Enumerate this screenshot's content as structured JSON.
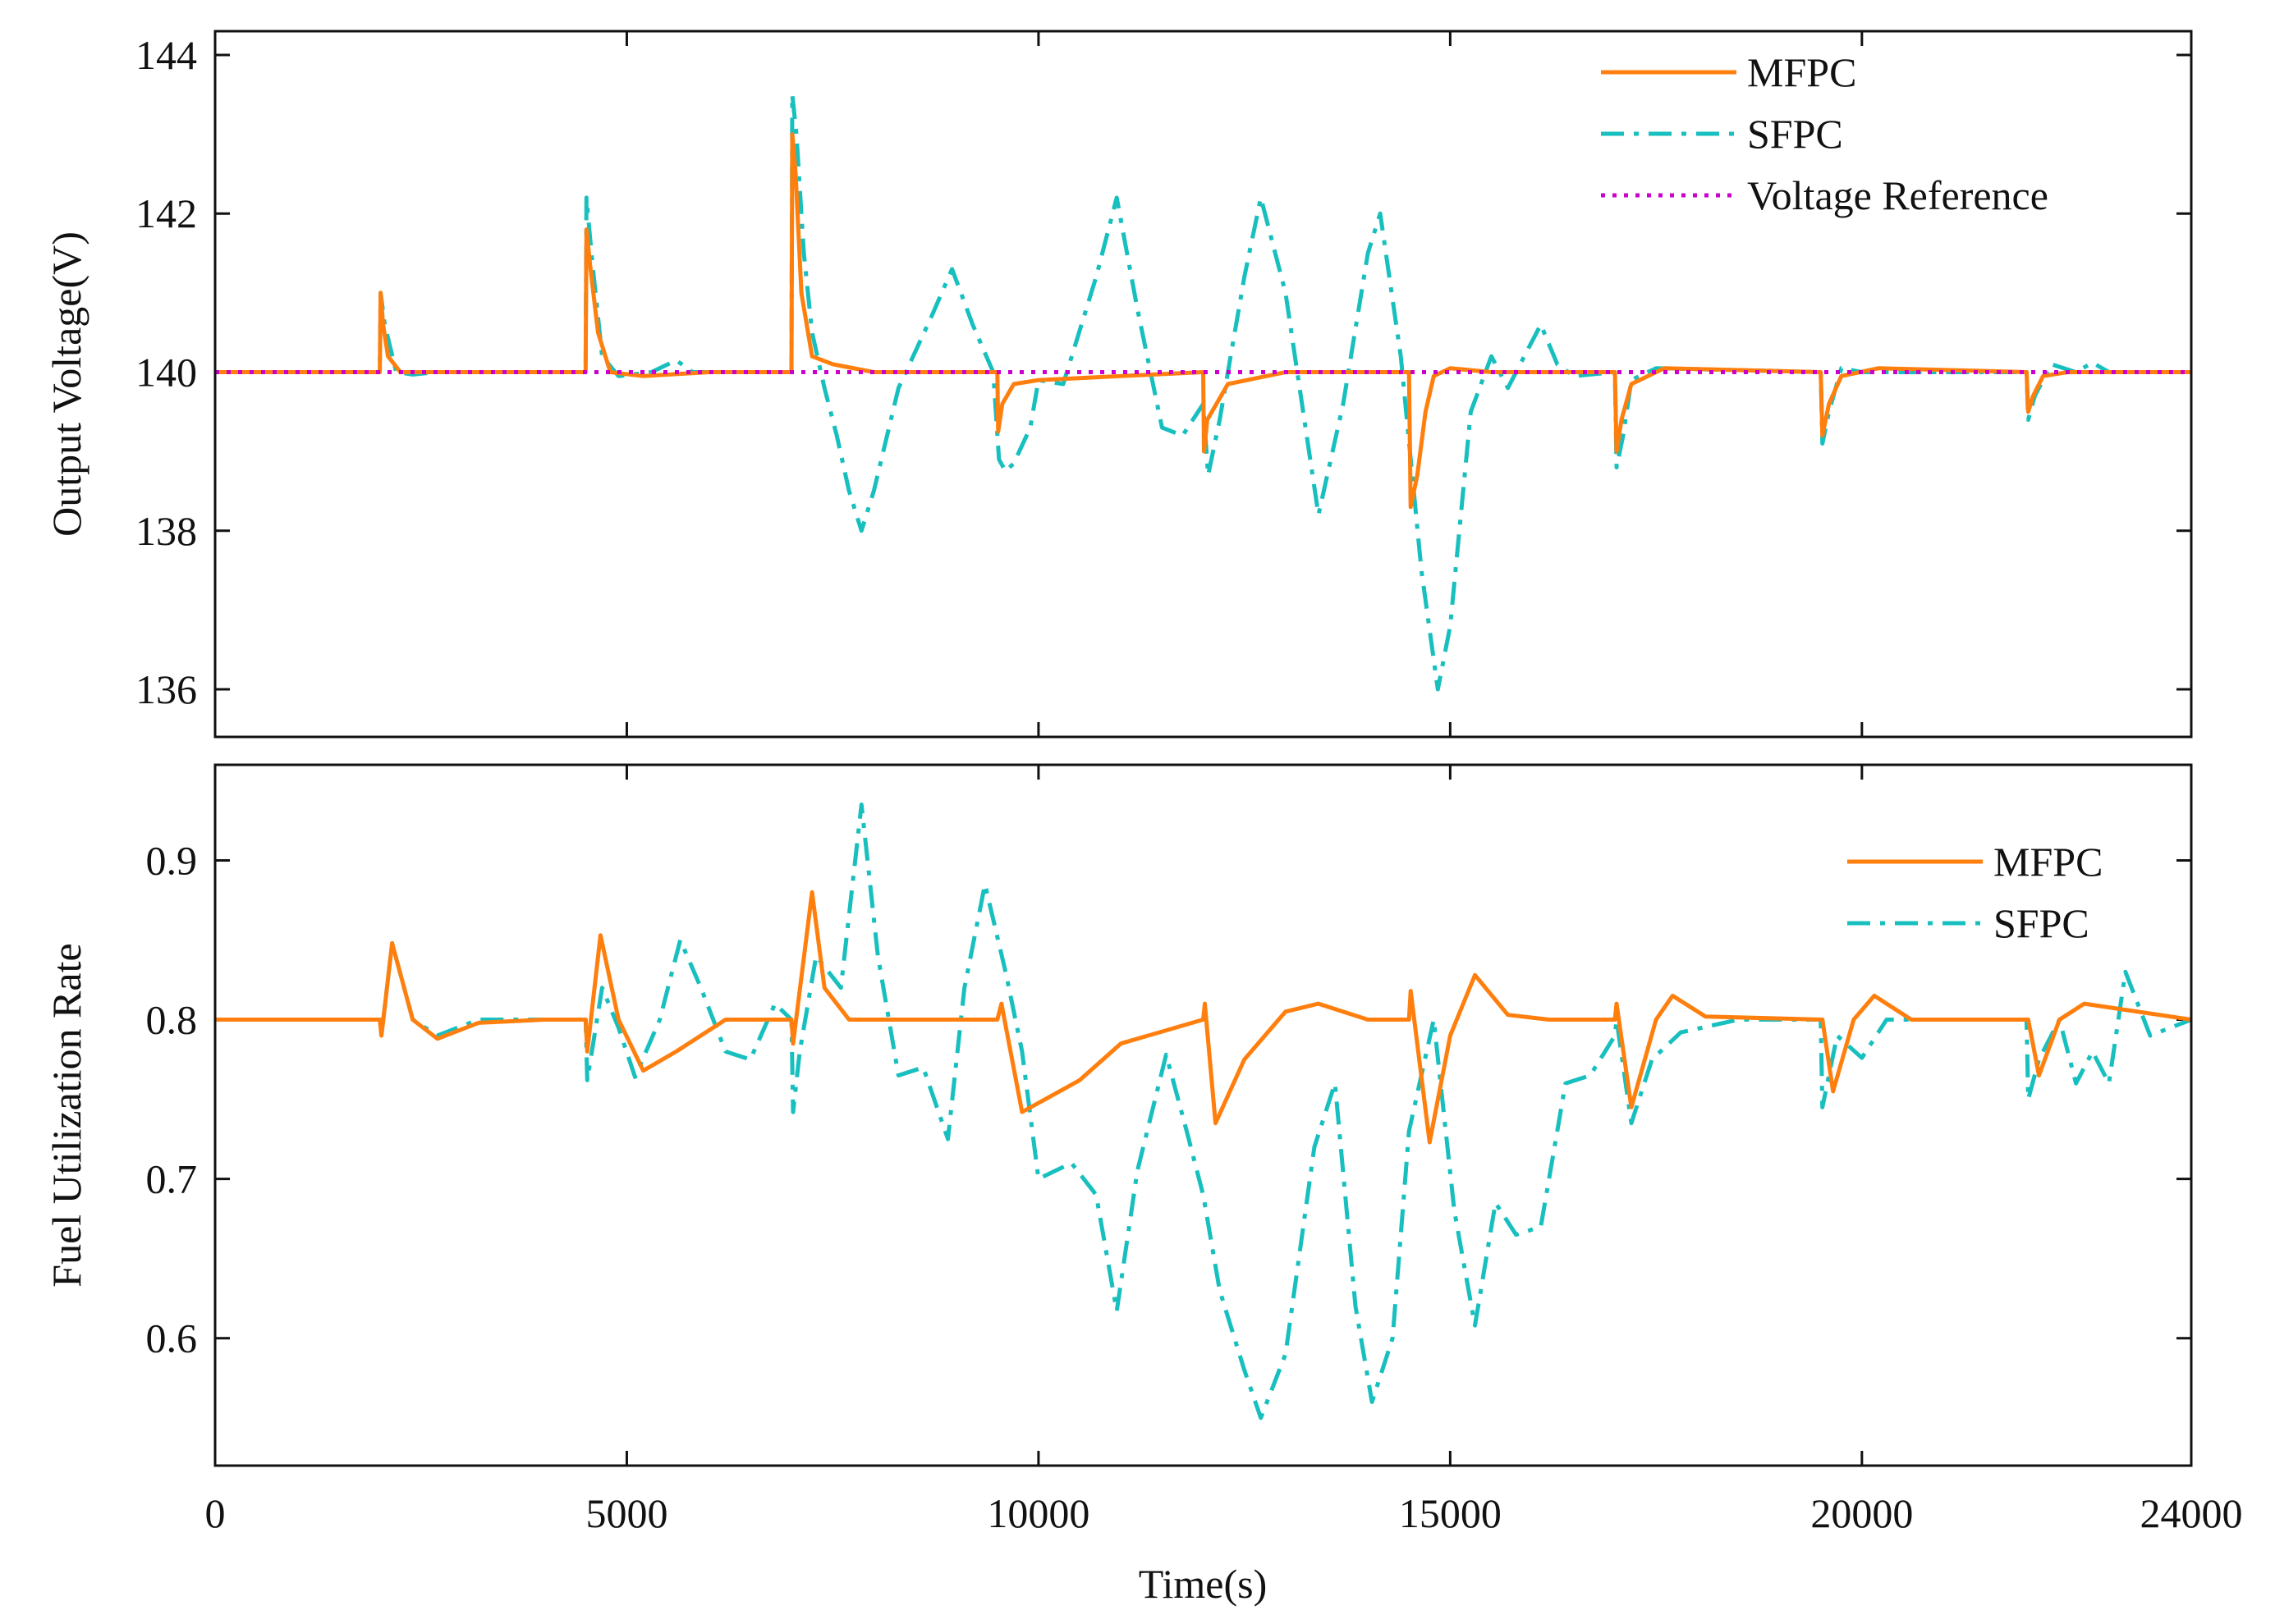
{
  "colors": {
    "mfpc": "#ff7f0e",
    "sfpc": "#17bfbf",
    "reference": "#cc00cc",
    "axes": "#111111",
    "background": "#ffffff"
  },
  "chart_data": [
    {
      "type": "line",
      "title": "",
      "xlabel": "",
      "ylabel": "Output Voltage(V)",
      "xlim": [
        0,
        24000
      ],
      "ylim": [
        135.4,
        144.3
      ],
      "xticks": [
        0,
        5000,
        10000,
        15000,
        20000,
        24000
      ],
      "yticks": [
        136,
        138,
        140,
        142,
        144
      ],
      "ytick_labels": [
        "136",
        "138",
        "140",
        "142",
        "144"
      ],
      "legend": {
        "position": "top-right",
        "entries": [
          "MFPC",
          "SFPC",
          "Voltage Reference"
        ]
      },
      "series": [
        {
          "name": "MFPC",
          "style": "solid",
          "x": [
            0,
            2000,
            2010,
            2040,
            2100,
            2250,
            2500,
            4500,
            4510,
            4560,
            4650,
            4800,
            5200,
            6000,
            7000,
            7010,
            7050,
            7120,
            7250,
            7500,
            8000,
            9500,
            9510,
            9560,
            9700,
            10000,
            11000,
            12000,
            12010,
            12050,
            12300,
            13000,
            14000,
            14500,
            14520,
            14600,
            14700,
            14800,
            15000,
            15500,
            17000,
            17020,
            17080,
            17200,
            17600,
            19500,
            19520,
            19600,
            19750,
            20200,
            22000,
            22020,
            22080,
            22200,
            22500,
            24000
          ],
          "values": [
            140.0,
            140.0,
            141.0,
            140.6,
            140.2,
            140.0,
            140.0,
            140.0,
            141.8,
            141.3,
            140.5,
            140.0,
            139.95,
            140.0,
            140.0,
            143.0,
            142.5,
            141.0,
            140.2,
            140.1,
            140.0,
            140.0,
            139.25,
            139.6,
            139.85,
            139.9,
            139.95,
            140.0,
            139.0,
            139.4,
            139.85,
            140.0,
            140.0,
            140.0,
            138.3,
            138.7,
            139.5,
            139.95,
            140.05,
            140.0,
            140.0,
            139.0,
            139.4,
            139.85,
            140.05,
            140.0,
            139.2,
            139.6,
            139.95,
            140.05,
            140.0,
            139.5,
            139.7,
            139.95,
            140.0,
            140.0
          ]
        },
        {
          "name": "SFPC",
          "style": "dashdot",
          "x": [
            0,
            2000,
            2010,
            2060,
            2200,
            2400,
            2700,
            4500,
            4510,
            4580,
            4700,
            4900,
            5300,
            5600,
            5800,
            6200,
            7000,
            7010,
            7060,
            7150,
            7250,
            7400,
            7550,
            7700,
            7850,
            8000,
            8300,
            8700,
            8950,
            9200,
            9450,
            9520,
            9600,
            9700,
            9900,
            10000,
            10300,
            10700,
            10950,
            11200,
            11500,
            11750,
            12000,
            12060,
            12200,
            12500,
            12700,
            13000,
            13400,
            13700,
            14000,
            14150,
            14400,
            14650,
            14850,
            15000,
            15250,
            15500,
            15700,
            15900,
            16100,
            16300,
            16500,
            17000,
            17020,
            17100,
            17200,
            17500,
            19500,
            19520,
            19600,
            19750,
            20000,
            22000,
            22020,
            22100,
            22300,
            22600,
            22800,
            23000,
            23500,
            24000
          ],
          "values": [
            140.0,
            140.0,
            141.0,
            140.6,
            140.0,
            139.97,
            140.0,
            140.0,
            142.2,
            141.4,
            140.2,
            139.95,
            140.0,
            140.15,
            140.0,
            140.0,
            140.0,
            143.5,
            143.0,
            141.5,
            140.5,
            139.8,
            139.2,
            138.5,
            138.0,
            138.5,
            139.8,
            140.7,
            141.3,
            140.6,
            140.0,
            138.9,
            138.75,
            138.85,
            139.3,
            139.9,
            139.85,
            141.2,
            142.2,
            140.8,
            139.3,
            139.2,
            139.6,
            138.7,
            139.4,
            141.2,
            142.2,
            141.0,
            138.2,
            139.6,
            141.5,
            142.0,
            140.2,
            137.5,
            136.0,
            136.8,
            139.5,
            140.2,
            139.8,
            140.2,
            140.6,
            140.1,
            139.95,
            140.0,
            138.8,
            139.2,
            139.9,
            140.05,
            140.0,
            139.1,
            139.5,
            140.05,
            140.0,
            140.0,
            139.4,
            139.7,
            140.1,
            140.0,
            140.12,
            140.0,
            140.0,
            140.0
          ]
        },
        {
          "name": "Voltage Reference",
          "style": "dotted",
          "x": [
            0,
            24000
          ],
          "values": [
            140,
            140
          ]
        }
      ]
    },
    {
      "type": "line",
      "title": "",
      "xlabel": "Time(s)",
      "ylabel": "Fuel Utilization Rate",
      "xlim": [
        0,
        24000
      ],
      "ylim": [
        0.52,
        0.96
      ],
      "xticks": [
        0,
        5000,
        10000,
        15000,
        20000,
        24000
      ],
      "xtick_labels": [
        "0",
        "5000",
        "10000",
        "15000",
        "20000",
        "24000"
      ],
      "yticks": [
        0.6,
        0.7,
        0.8,
        0.9
      ],
      "ytick_labels": [
        "0.6",
        "0.7",
        "0.8",
        "0.9"
      ],
      "legend": {
        "position": "top-right",
        "entries": [
          "MFPC",
          "SFPC"
        ]
      },
      "series": [
        {
          "name": "MFPC",
          "style": "solid",
          "x": [
            0,
            2000,
            2020,
            2150,
            2400,
            2700,
            3200,
            4000,
            4500,
            4520,
            4680,
            4900,
            5200,
            5600,
            6200,
            7000,
            7020,
            7250,
            7400,
            7700,
            8000,
            9500,
            9550,
            9800,
            10500,
            11000,
            12000,
            12020,
            12150,
            12500,
            13000,
            13400,
            14000,
            14500,
            14520,
            14750,
            15000,
            15300,
            15700,
            16200,
            17000,
            17020,
            17200,
            17500,
            17700,
            18100,
            19500,
            19520,
            19650,
            19900,
            20150,
            20600,
            22000,
            22020,
            22150,
            22400,
            22700,
            24000
          ],
          "values": [
            0.8,
            0.8,
            0.79,
            0.848,
            0.8,
            0.788,
            0.798,
            0.8,
            0.8,
            0.78,
            0.853,
            0.8,
            0.768,
            0.78,
            0.8,
            0.8,
            0.785,
            0.88,
            0.82,
            0.8,
            0.8,
            0.8,
            0.81,
            0.742,
            0.762,
            0.785,
            0.8,
            0.81,
            0.735,
            0.775,
            0.805,
            0.81,
            0.8,
            0.8,
            0.818,
            0.723,
            0.79,
            0.828,
            0.803,
            0.8,
            0.8,
            0.81,
            0.745,
            0.8,
            0.815,
            0.802,
            0.8,
            0.8,
            0.755,
            0.8,
            0.815,
            0.8,
            0.8,
            0.8,
            0.765,
            0.8,
            0.81,
            0.8
          ]
        },
        {
          "name": "SFPC",
          "style": "dashdot",
          "x": [
            0,
            2000,
            2020,
            2150,
            2400,
            2700,
            3200,
            4000,
            4500,
            4520,
            4700,
            4900,
            5100,
            5400,
            5650,
            5900,
            6200,
            6500,
            6800,
            7000,
            7020,
            7100,
            7300,
            7600,
            7850,
            8050,
            8300,
            8600,
            8900,
            9100,
            9350,
            9600,
            9800,
            10000,
            10400,
            10700,
            10950,
            11200,
            11550,
            11800,
            12000,
            12200,
            12500,
            12700,
            13000,
            13350,
            13600,
            13850,
            14050,
            14300,
            14500,
            14800,
            15050,
            15300,
            15550,
            15800,
            16100,
            16400,
            16700,
            17000,
            17020,
            17200,
            17450,
            17800,
            18500,
            19500,
            19520,
            19700,
            20000,
            20300,
            20700,
            22000,
            22020,
            22150,
            22400,
            22600,
            22800,
            23000,
            23200,
            23500,
            24000
          ],
          "values": [
            0.8,
            0.8,
            0.79,
            0.848,
            0.8,
            0.79,
            0.8,
            0.8,
            0.8,
            0.762,
            0.82,
            0.795,
            0.764,
            0.8,
            0.85,
            0.82,
            0.78,
            0.775,
            0.81,
            0.8,
            0.742,
            0.78,
            0.84,
            0.82,
            0.935,
            0.84,
            0.765,
            0.77,
            0.725,
            0.82,
            0.885,
            0.83,
            0.78,
            0.7,
            0.71,
            0.69,
            0.617,
            0.705,
            0.778,
            0.73,
            0.69,
            0.63,
            0.58,
            0.55,
            0.59,
            0.72,
            0.76,
            0.62,
            0.56,
            0.6,
            0.73,
            0.8,
            0.68,
            0.608,
            0.685,
            0.665,
            0.67,
            0.76,
            0.765,
            0.79,
            0.8,
            0.735,
            0.775,
            0.792,
            0.8,
            0.8,
            0.745,
            0.79,
            0.776,
            0.8,
            0.8,
            0.8,
            0.75,
            0.775,
            0.8,
            0.76,
            0.78,
            0.76,
            0.83,
            0.79,
            0.8
          ]
        }
      ]
    }
  ]
}
